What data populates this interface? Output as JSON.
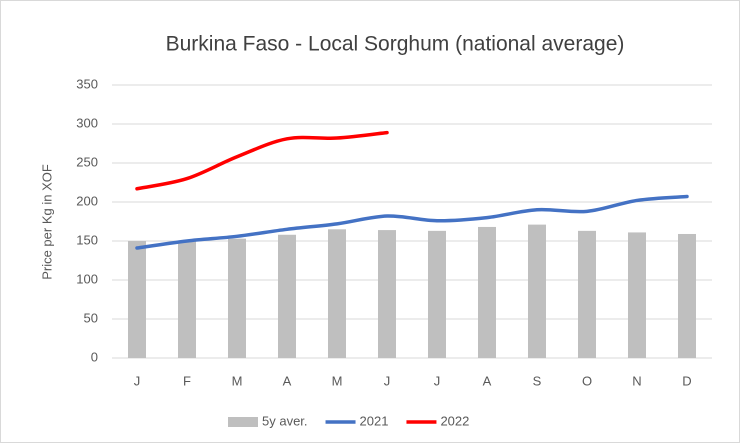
{
  "chart_data": {
    "type": "bar-line",
    "title": "Burkina Faso - Local Sorghum (national average)",
    "y_label": "Price per Kg in XOF",
    "categories": [
      "J",
      "F",
      "M",
      "A",
      "M",
      "J",
      "J",
      "A",
      "S",
      "O",
      "N",
      "D"
    ],
    "series": [
      {
        "name": "5y aver.",
        "type": "bar",
        "color": "#bfbfbf",
        "values": [
          150,
          150,
          153,
          158,
          165,
          164,
          163,
          168,
          171,
          163,
          161,
          159
        ]
      },
      {
        "name": "2021",
        "type": "line",
        "color": "#4472c4",
        "values": [
          141,
          150,
          156,
          165,
          172,
          182,
          176,
          180,
          190,
          188,
          202,
          207
        ]
      },
      {
        "name": "2022",
        "type": "line",
        "color": "#ff0000",
        "values": [
          217,
          230,
          258,
          281,
          282,
          289,
          null,
          null,
          null,
          null,
          null,
          null
        ]
      }
    ],
    "ylim": [
      0,
      350
    ],
    "yticks": [
      0,
      50,
      100,
      150,
      200,
      250,
      300,
      350
    ],
    "grid": true,
    "legend": "bottom"
  }
}
